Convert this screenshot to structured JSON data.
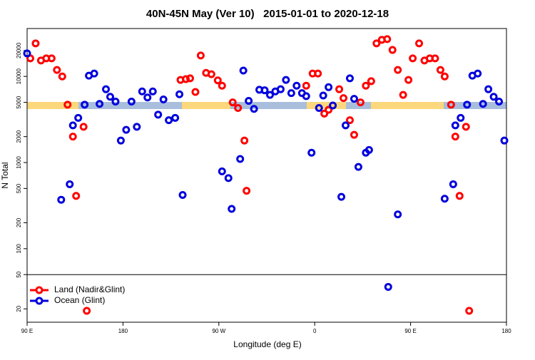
{
  "chart_data": {
    "type": "scatter",
    "title": "40N-45N May (Ver 10)   2015-01-01 to 2020-12-18",
    "xlabel": "Longitude (deg E)",
    "ylabel": "N Total",
    "log_y": true,
    "xlim": [
      90,
      540
    ],
    "ylim": [
      14,
      36000
    ],
    "xticks": [
      {
        "value": 90,
        "label": "90 E"
      },
      {
        "value": 180,
        "label": "180"
      },
      {
        "value": 270,
        "label": "90 W"
      },
      {
        "value": 360,
        "label": "0"
      },
      {
        "value": 450,
        "label": "90 E"
      },
      {
        "value": 540,
        "label": "180"
      }
    ],
    "yticks": [
      20,
      50,
      100,
      200,
      500,
      1000,
      2000,
      5000,
      10000,
      20000
    ],
    "hline": 50,
    "legend": "bottomleft",
    "series": [
      {
        "name": "Land (Nadir&Glint)",
        "color": "#ff0000",
        "x": [
          93,
          98,
          103,
          108,
          113,
          118,
          123,
          128,
          133,
          136,
          143,
          146,
          234,
          239,
          243,
          248,
          253,
          258,
          263,
          269,
          273,
          283,
          288,
          294,
          296,
          352,
          358,
          363,
          369,
          373,
          383,
          387,
          393,
          397,
          403,
          408,
          413,
          418,
          423,
          428,
          433,
          438,
          443,
          448,
          452,
          458,
          463,
          468,
          473,
          478,
          482,
          488,
          492,
          496,
          502,
          505
        ],
        "values": [
          16200,
          24200,
          15300,
          16200,
          16200,
          11900,
          10000,
          4700,
          2000,
          410,
          2600,
          19,
          9100,
          9300,
          9500,
          6600,
          17500,
          11000,
          10600,
          9000,
          7800,
          5000,
          4300,
          1800,
          470,
          7800,
          10800,
          10800,
          3700,
          4100,
          7100,
          5600,
          3100,
          2100,
          5000,
          7800,
          8800,
          24200,
          26600,
          27100,
          20300,
          11900,
          6100,
          9100,
          16200,
          24200,
          15300,
          16200,
          16200,
          11900,
          10000,
          4700,
          2000,
          410,
          2600,
          19
        ]
      },
      {
        "name": "Ocean (Glint)",
        "color": "#0000dd",
        "x": [
          90,
          122,
          130,
          133,
          138,
          144,
          148,
          153,
          158,
          164,
          168,
          173,
          178,
          183,
          188,
          193,
          198,
          203,
          208,
          213,
          218,
          223,
          229,
          233,
          236,
          273,
          279,
          282,
          290,
          293,
          298,
          303,
          308,
          313,
          318,
          323,
          328,
          333,
          338,
          343,
          348,
          352,
          357,
          364,
          368,
          373,
          377,
          385,
          389,
          393,
          397,
          401,
          408,
          411,
          429,
          438,
          482,
          490,
          492,
          497,
          503,
          508,
          513,
          518,
          523,
          528,
          533,
          538
        ],
        "values": [
          18500,
          370,
          560,
          2700,
          3300,
          4700,
          10200,
          10800,
          4800,
          7100,
          5800,
          5100,
          1800,
          2400,
          5100,
          2600,
          6700,
          5700,
          6700,
          3600,
          5400,
          3100,
          3300,
          6200,
          420,
          790,
          660,
          290,
          1100,
          11700,
          5200,
          4200,
          7000,
          6900,
          6100,
          6700,
          7100,
          9100,
          6400,
          7800,
          6400,
          5900,
          1300,
          4300,
          6000,
          7500,
          4600,
          400,
          2700,
          9500,
          5500,
          890,
          1300,
          1400,
          36,
          250,
          380,
          560,
          2700,
          3300,
          4700,
          10200,
          10800,
          4800,
          7100,
          5800,
          5100,
          1800
        ]
      }
    ]
  }
}
